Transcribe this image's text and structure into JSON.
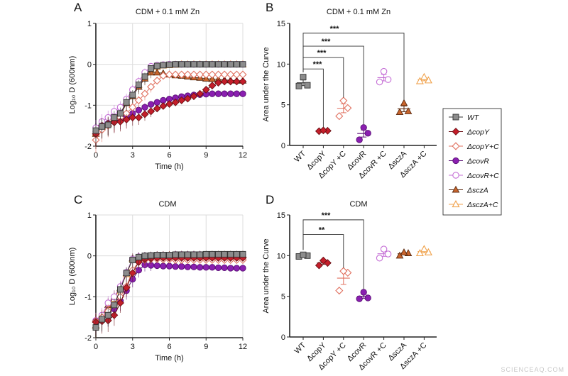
{
  "watermark": "SCIENCEAQ.COM",
  "legend": {
    "placement": "right",
    "entries": [
      {
        "label": "WT",
        "color": "#8c8c8c",
        "edge": "#333333",
        "marker": "square",
        "filled": true
      },
      {
        "label": "ΔcopY",
        "color": "#c41e2a",
        "edge": "#6a0f14",
        "marker": "diamond",
        "filled": true
      },
      {
        "label": "ΔcopY+C",
        "color": "#e0705f",
        "edge": "#e0705f",
        "marker": "diamond",
        "filled": false
      },
      {
        "label": "ΔcovR",
        "color": "#8a1fb0",
        "edge": "#5a1075",
        "marker": "circle",
        "filled": true
      },
      {
        "label": "ΔcovR+C",
        "color": "#c56fd6",
        "edge": "#c56fd6",
        "marker": "circle",
        "filled": false
      },
      {
        "label": "ΔsczA",
        "color": "#c8642c",
        "edge": "#5a2a10",
        "marker": "triangle",
        "filled": true
      },
      {
        "label": "ΔsczA+C",
        "color": "#f0a24c",
        "edge": "#f0a24c",
        "marker": "triangle",
        "filled": false
      }
    ]
  },
  "chart_data": [
    {
      "panel": "A",
      "type": "line",
      "title": "CDM + 0.1 mM Zn",
      "xlabel": "Time (h)",
      "ylabel": "Log₁₀ D (600nm)",
      "xlim": [
        0,
        12
      ],
      "ylim": [
        -2,
        1
      ],
      "grid": true,
      "xticks": [
        "0",
        "3",
        "6",
        "9",
        "12"
      ],
      "yticks": [
        "1",
        "0",
        "-1",
        "-2"
      ],
      "x": [
        0,
        0.5,
        1,
        1.5,
        2,
        2.5,
        3,
        3.5,
        4,
        4.5,
        5,
        5.5,
        6,
        6.5,
        7,
        7.5,
        8,
        8.5,
        9,
        9.5,
        10,
        10.5,
        11,
        11.5,
        12
      ],
      "series": [
        {
          "name": "WT",
          "values": [
            -1.62,
            -1.52,
            -1.48,
            -1.3,
            -1.2,
            -0.93,
            -0.75,
            -0.5,
            -0.3,
            -0.1,
            -0.04,
            -0.02,
            -0.01,
            0,
            0,
            0,
            0,
            0,
            0,
            0,
            0,
            0,
            0,
            0,
            0
          ]
        },
        {
          "name": "ΔcopY",
          "values": [
            -1.7,
            -1.5,
            -1.45,
            -1.42,
            -1.4,
            -1.35,
            -1.3,
            -1.3,
            -1.22,
            -1.15,
            -1.08,
            -1.02,
            -0.97,
            -0.93,
            -0.88,
            -0.84,
            -0.78,
            -0.72,
            -0.62,
            -0.52,
            -0.45,
            -0.42,
            -0.42,
            -0.42,
            -0.42
          ]
        },
        {
          "name": "ΔcopY+C",
          "values": [
            -1.85,
            -1.6,
            -1.5,
            -1.4,
            -1.3,
            -1.2,
            -1.05,
            -0.88,
            -0.72,
            -0.55,
            -0.4,
            -0.28,
            -0.25,
            -0.25,
            -0.25,
            -0.25,
            -0.25,
            -0.25,
            -0.25,
            -0.25,
            -0.25,
            -0.25,
            -0.25,
            -0.25,
            -0.25
          ]
        },
        {
          "name": "ΔcovR",
          "values": [
            -1.65,
            -1.5,
            -1.45,
            -1.4,
            -1.35,
            -1.28,
            -1.2,
            -1.12,
            -1.05,
            -0.98,
            -0.93,
            -0.88,
            -0.85,
            -0.82,
            -0.79,
            -0.77,
            -0.75,
            -0.74,
            -0.73,
            -0.72,
            -0.72,
            -0.72,
            -0.72,
            -0.72,
            -0.72
          ]
        },
        {
          "name": "ΔcovR+C",
          "values": [
            -1.55,
            -1.4,
            -1.3,
            -1.15,
            -1.05,
            -0.85,
            -0.62,
            -0.42,
            -0.2,
            -0.05,
            -0.02,
            -0.01,
            0,
            0,
            0,
            0,
            0,
            0,
            0,
            0,
            0,
            0,
            0,
            0,
            0
          ]
        },
        {
          "name": "ΔsczA",
          "values": [
            -1.7,
            -1.5,
            -1.45,
            -1.35,
            -1.25,
            -0.95,
            -0.78,
            -0.55,
            -0.35,
            -0.2,
            -0.2,
            -0.22,
            -0.25,
            -0.27,
            -0.28,
            -0.3,
            -0.32,
            -0.33,
            -0.35,
            -0.36,
            -0.37,
            -0.38,
            -0.39,
            -0.4,
            -0.4
          ]
        },
        {
          "name": "ΔsczA+C",
          "values": [
            -1.68,
            -1.5,
            -1.45,
            -1.3,
            -1.2,
            -0.93,
            -0.74,
            -0.5,
            -0.3,
            -0.12,
            -0.06,
            -0.03,
            -0.02,
            -0.01,
            0,
            0,
            0,
            0,
            0,
            0,
            0,
            0,
            0,
            0,
            0
          ]
        }
      ]
    },
    {
      "panel": "B",
      "type": "scatter",
      "title": "CDM + 0.1 mM Zn",
      "ylabel": "Area under the Curve",
      "ylim": [
        0,
        15
      ],
      "yticks": [
        "15",
        "10",
        "5",
        "0"
      ],
      "categories": [
        "WT",
        "ΔcopY",
        "ΔcopY +C",
        "ΔcovR",
        "ΔcovR +C",
        "ΔsczA",
        "ΔsczA +C"
      ],
      "replicates": [
        [
          7.3,
          7.4,
          8.4
        ],
        [
          1.75,
          1.8,
          1.85
        ],
        [
          3.6,
          4.6,
          5.5
        ],
        [
          0.7,
          1.5,
          2.2
        ],
        [
          7.8,
          8.1,
          9.1
        ],
        [
          4.1,
          4.2,
          5.2
        ],
        [
          7.9,
          8.0,
          8.4
        ]
      ],
      "comparisons": [
        {
          "from": 0,
          "to": 1,
          "label": "***",
          "level": 9.4
        },
        {
          "from": 0,
          "to": 2,
          "label": "***",
          "level": 10.8
        },
        {
          "from": 0,
          "to": 3,
          "label": "***",
          "level": 12.2
        },
        {
          "from": 0,
          "to": 5,
          "label": "***",
          "level": 13.8
        }
      ]
    },
    {
      "panel": "C",
      "type": "line",
      "title": "CDM",
      "xlabel": "Time (h)",
      "ylabel": "Log₁₀ D (600nm)",
      "xlim": [
        0,
        12
      ],
      "ylim": [
        -2,
        1
      ],
      "grid": true,
      "xticks": [
        "0",
        "3",
        "6",
        "9",
        "12"
      ],
      "yticks": [
        "1",
        "0",
        "-1",
        "-2"
      ],
      "x": [
        0,
        0.5,
        1,
        1.5,
        2,
        2.5,
        3,
        3.5,
        4,
        4.5,
        5,
        5.5,
        6,
        6.5,
        7,
        7.5,
        8,
        8.5,
        9,
        9.5,
        10,
        10.5,
        11,
        11.5,
        12
      ],
      "series": [
        {
          "name": "WT",
          "values": [
            -1.75,
            -1.55,
            -1.45,
            -1.2,
            -0.82,
            -0.42,
            -0.1,
            -0.03,
            0,
            0.01,
            0.02,
            0.02,
            0.02,
            0.03,
            0.03,
            0.03,
            0.03,
            0.03,
            0.04,
            0.04,
            0.04,
            0.04,
            0.04,
            0.04,
            0.04
          ]
        },
        {
          "name": "ΔcopY",
          "values": [
            -1.62,
            -1.6,
            -1.58,
            -1.45,
            -1.15,
            -0.78,
            -0.42,
            -0.15,
            -0.08,
            -0.06,
            -0.05,
            -0.05,
            -0.05,
            -0.05,
            -0.05,
            -0.05,
            -0.05,
            -0.05,
            -0.05,
            -0.05,
            -0.05,
            -0.05,
            -0.05,
            -0.05,
            -0.05
          ]
        },
        {
          "name": "ΔcopY+C",
          "values": [
            -1.6,
            -1.5,
            -1.35,
            -1.2,
            -1.0,
            -0.75,
            -0.35,
            -0.15,
            -0.1,
            -0.08,
            -0.08,
            -0.09,
            -0.09,
            -0.1,
            -0.1,
            -0.1,
            -0.1,
            -0.1,
            -0.1,
            -0.1,
            -0.1,
            -0.1,
            -0.1,
            -0.1,
            -0.1
          ]
        },
        {
          "name": "ΔcovR",
          "values": [
            -1.6,
            -1.55,
            -1.45,
            -1.3,
            -1.1,
            -0.85,
            -0.57,
            -0.35,
            -0.22,
            -0.23,
            -0.24,
            -0.25,
            -0.25,
            -0.26,
            -0.26,
            -0.27,
            -0.27,
            -0.28,
            -0.28,
            -0.28,
            -0.29,
            -0.29,
            -0.3,
            -0.3,
            -0.3
          ]
        },
        {
          "name": "ΔcovR+C",
          "values": [
            -1.58,
            -1.45,
            -1.15,
            -1.0,
            -0.75,
            -0.4,
            -0.08,
            -0.02,
            0,
            0.01,
            0.02,
            0.02,
            0.02,
            0.03,
            0.03,
            0.03,
            0.03,
            0.03,
            0.03,
            0.03,
            0.03,
            0.03,
            0.03,
            0.03,
            0.03
          ]
        },
        {
          "name": "ΔsczA",
          "values": [
            -1.7,
            -1.5,
            -1.2,
            -1.0,
            -0.78,
            -0.42,
            -0.06,
            -0.02,
            0,
            0.01,
            0.02,
            0.02,
            0.02,
            0.03,
            0.03,
            0.03,
            0.03,
            0.03,
            0.03,
            0.03,
            0.03,
            0.03,
            0.03,
            0.03,
            0.03
          ]
        },
        {
          "name": "ΔsczA+C",
          "values": [
            -1.7,
            -1.52,
            -1.25,
            -1.05,
            -0.8,
            -0.45,
            -0.08,
            -0.03,
            -0.01,
            0,
            0.01,
            0.01,
            0.02,
            0.02,
            0.02,
            0.02,
            0.02,
            0.02,
            0.02,
            0.02,
            0.02,
            0.02,
            0.02,
            0.02,
            0.02
          ]
        }
      ]
    },
    {
      "panel": "D",
      "type": "scatter",
      "title": "CDM",
      "ylabel": "Area under the Curve",
      "ylim": [
        0,
        15
      ],
      "yticks": [
        "15",
        "10",
        "5",
        "0"
      ],
      "categories": [
        "WT",
        "ΔcopY",
        "ΔcopY +C",
        "ΔcovR",
        "ΔcovR +C",
        "ΔsczA",
        "ΔsczA +C"
      ],
      "replicates": [
        [
          9.9,
          10.0,
          10.1
        ],
        [
          8.8,
          9.1,
          9.4
        ],
        [
          5.7,
          7.9,
          8.1
        ],
        [
          4.7,
          4.8,
          5.5
        ],
        [
          9.7,
          10.2,
          10.8
        ],
        [
          10.0,
          10.3,
          10.4
        ],
        [
          10.3,
          10.4,
          10.8
        ]
      ],
      "comparisons": [
        {
          "from": 0,
          "to": 2,
          "label": "**",
          "level": 12.6
        },
        {
          "from": 0,
          "to": 3,
          "label": "***",
          "level": 14.4
        }
      ]
    }
  ]
}
